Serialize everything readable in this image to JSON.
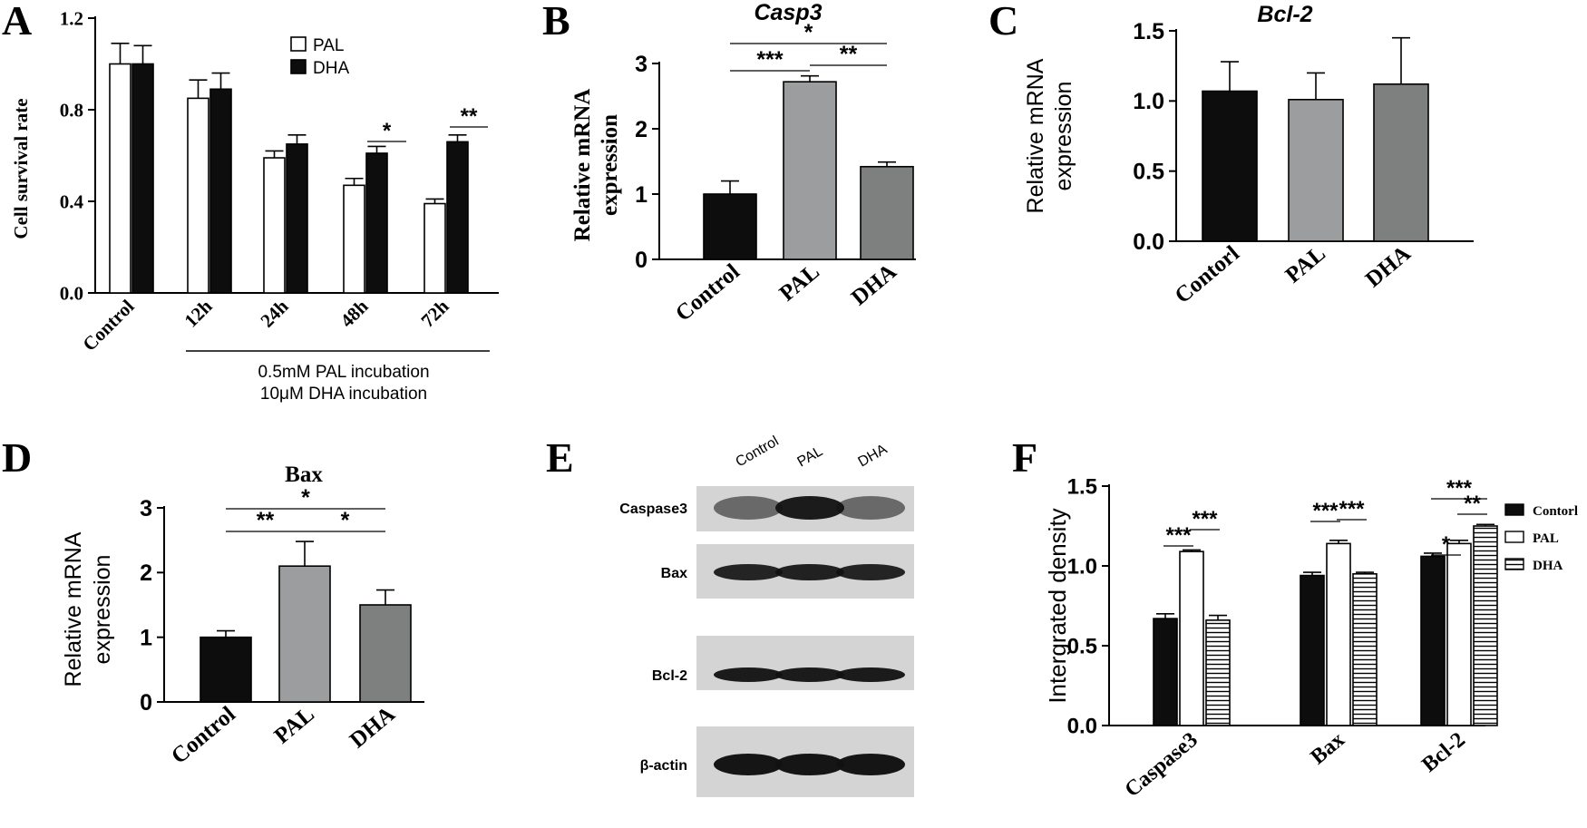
{
  "panels": {
    "A": "A",
    "B": "B",
    "C": "C",
    "D": "D",
    "E": "E",
    "F": "F"
  },
  "colors": {
    "control": "#0d0d0d",
    "pal_gray": "#9b9d9f",
    "dha_gray": "#7d807f",
    "white": "#ffffff"
  },
  "chart_data": [
    {
      "id": "A",
      "type": "bar",
      "categories": [
        "Control",
        "12h",
        "24h",
        "48h",
        "72h"
      ],
      "series": [
        {
          "name": "PAL",
          "values": [
            1.0,
            0.85,
            0.59,
            0.47,
            0.39
          ],
          "errors": [
            0.09,
            0.08,
            0.03,
            0.03,
            0.02
          ]
        },
        {
          "name": "DHA",
          "values": [
            1.0,
            0.89,
            0.65,
            0.61,
            0.66
          ],
          "errors": [
            0.08,
            0.07,
            0.04,
            0.03,
            0.03
          ]
        }
      ],
      "ylabel": "Cell survival rate",
      "ylim": [
        0,
        1.2
      ],
      "yticks": [
        "0.0",
        "0.4",
        "0.8",
        "1.2"
      ],
      "group_note": [
        "0.5mM PAL incubation",
        "10μM DHA incubation"
      ],
      "significance": [
        {
          "group": "48h",
          "text": "*"
        },
        {
          "group": "72h",
          "text": "**"
        }
      ],
      "legend_position": "top-right"
    },
    {
      "id": "B",
      "type": "bar",
      "title": "Casp3",
      "categories": [
        "Control",
        "PAL",
        "DHA"
      ],
      "values": [
        1.0,
        2.72,
        1.42
      ],
      "errors": [
        0.2,
        0.09,
        0.07
      ],
      "ylabel": [
        "Relative mRNA",
        "expression"
      ],
      "ylim": [
        0,
        3
      ],
      "yticks": [
        "0",
        "1",
        "2",
        "3"
      ],
      "significance": [
        {
          "from": 0,
          "to": 2,
          "text": "*"
        },
        {
          "from": 0,
          "to": 1,
          "text": "***"
        },
        {
          "from": 1,
          "to": 2,
          "text": "**"
        }
      ]
    },
    {
      "id": "C",
      "type": "bar",
      "title": "Bcl-2",
      "categories": [
        "Contorl",
        "PAL",
        "DHA"
      ],
      "values": [
        1.07,
        1.01,
        1.12
      ],
      "errors": [
        0.21,
        0.19,
        0.33
      ],
      "ylabel": [
        "Relative mRNA",
        "expression"
      ],
      "ylim": [
        0,
        1.5
      ],
      "yticks": [
        "0.0",
        "0.5",
        "1.0",
        "1.5"
      ]
    },
    {
      "id": "D",
      "type": "bar",
      "title": "Bax",
      "categories": [
        "Control",
        "PAL",
        "DHA"
      ],
      "values": [
        1.0,
        2.1,
        1.5
      ],
      "errors": [
        0.1,
        0.38,
        0.23
      ],
      "ylabel": [
        "Relative mRNA",
        "expression"
      ],
      "ylim": [
        0,
        3
      ],
      "yticks": [
        "0",
        "1",
        "2",
        "3"
      ],
      "significance": [
        {
          "from": 0,
          "to": 2,
          "text": "*"
        },
        {
          "from": 0,
          "to": 1,
          "text": "**"
        },
        {
          "from": 1,
          "to": 2,
          "text": "*"
        }
      ]
    },
    {
      "id": "E",
      "type": "western_blot",
      "lanes": [
        "Control",
        "PAL",
        "DHA"
      ],
      "rows": [
        "Caspase3",
        "Bax",
        "Bcl-2",
        "β-actin"
      ]
    },
    {
      "id": "F",
      "type": "bar",
      "categories": [
        "Caspase3",
        "Bax",
        "Bcl-2"
      ],
      "series": [
        {
          "name": "Contorl",
          "values": [
            0.67,
            0.94,
            1.06
          ],
          "errors": [
            0.03,
            0.02,
            0.02
          ]
        },
        {
          "name": "PAL",
          "values": [
            1.09,
            1.14,
            1.14
          ],
          "errors": [
            0.01,
            0.02,
            0.02
          ]
        },
        {
          "name": "DHA",
          "values": [
            0.66,
            0.95,
            1.25
          ],
          "errors": [
            0.03,
            0.01,
            0.01
          ]
        }
      ],
      "ylabel": "Intergrated density",
      "ylim": [
        0,
        1.5
      ],
      "yticks": [
        "0.0",
        "0.5",
        "1.0",
        "1.5"
      ],
      "significance": [
        {
          "group": 0,
          "from": 0,
          "to": 1,
          "text": "***"
        },
        {
          "group": 0,
          "from": 1,
          "to": 2,
          "text": "***"
        },
        {
          "group": 1,
          "from": 0,
          "to": 1,
          "text": "***"
        },
        {
          "group": 1,
          "from": 1,
          "to": 2,
          "text": "***"
        },
        {
          "group": 2,
          "from": 0,
          "to": 1,
          "text": "*"
        },
        {
          "group": 2,
          "from": 1,
          "to": 2,
          "text": "**"
        },
        {
          "group": 2,
          "from": 0,
          "to": 2,
          "text": "***"
        }
      ],
      "legend_position": "right"
    }
  ]
}
